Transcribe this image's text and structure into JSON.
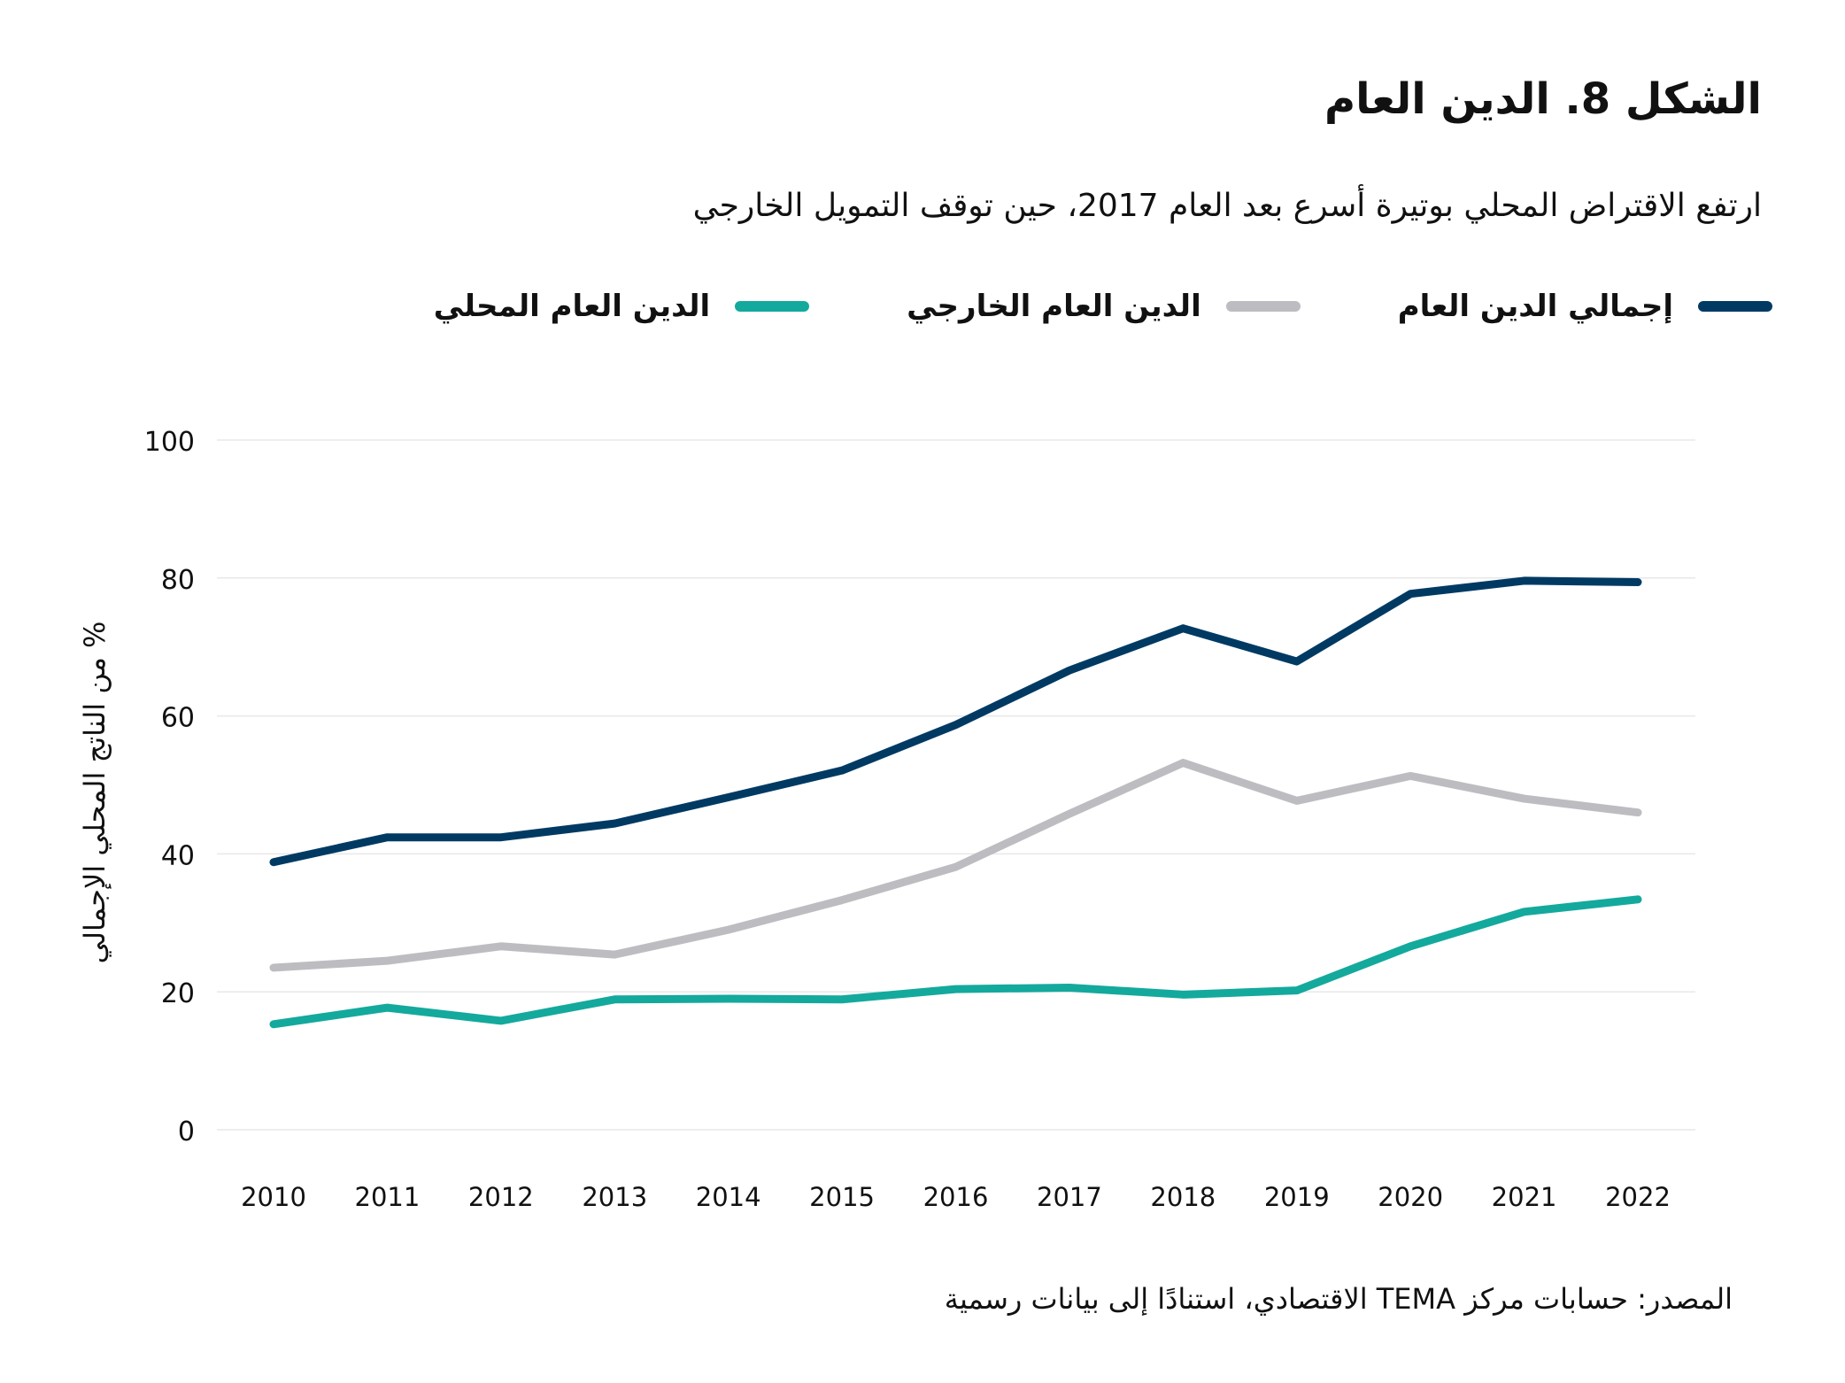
{
  "title": "الشكل 8. الدين العام",
  "subtitle": "ارتفع الاقتراض المحلي بوتيرة أسرع بعد العام 2017، حين توقف التمويل الخارجي",
  "source": "المصدر: حسابات مركز TEMA الاقتصادي، استنادًا إلى بيانات رسمية",
  "chart_data": {
    "type": "line",
    "title": "الشكل 8. الدين العام",
    "subtitle": "ارتفع الاقتراض المحلي بوتيرة أسرع بعد العام 2017، حين توقف التمويل الخارجي",
    "xlabel": "",
    "ylabel": "% من الناتج المحلي الإجمالي",
    "ylim": [
      0,
      100
    ],
    "yticks": [
      0,
      20,
      40,
      60,
      80,
      100
    ],
    "grid": true,
    "legend_position": "top",
    "x": [
      "2010",
      "2011",
      "2012",
      "2013",
      "2014",
      "2015",
      "2016",
      "2017",
      "2018",
      "2019",
      "2020",
      "2021",
      "2022"
    ],
    "series": [
      {
        "name": "إجمالي الدين العام",
        "color": "#003a63",
        "values": [
          38.8,
          42.4,
          42.4,
          44.4,
          48.2,
          52.1,
          58.7,
          66.6,
          72.7,
          67.9,
          77.7,
          79.6,
          79.4
        ]
      },
      {
        "name": "الدين العام الخارجي",
        "color": "#bdbdc1",
        "values": [
          23.5,
          24.5,
          26.6,
          25.4,
          29.0,
          33.3,
          38.1,
          45.8,
          53.2,
          47.7,
          51.3,
          48.0,
          46.0
        ]
      },
      {
        "name": "الدين العام المحلي",
        "color": "#14a99d",
        "values": [
          15.3,
          17.7,
          15.8,
          18.9,
          19.0,
          18.9,
          20.4,
          20.6,
          19.6,
          20.2,
          26.6,
          31.6,
          33.4
        ]
      }
    ]
  }
}
